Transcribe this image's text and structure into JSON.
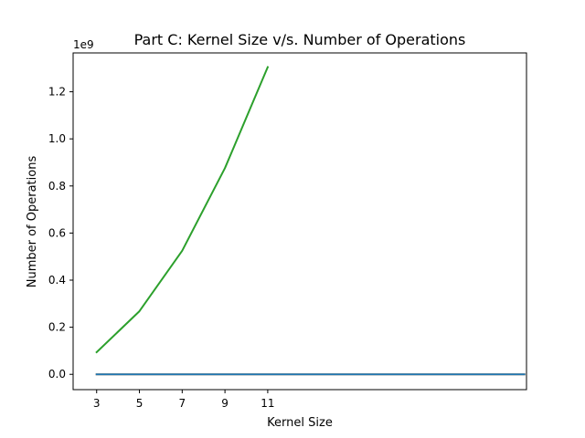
{
  "chart_data": {
    "type": "line",
    "title": "Part C: Kernel Size v/s. Number of Operations",
    "xlabel": "Kernel Size",
    "ylabel": "Number of Operations",
    "y_offset_label": "1e9",
    "xlim": [
      1.9,
      23.1
    ],
    "ylim": [
      -0.065,
      1.365
    ],
    "x_ticks": [
      3,
      5,
      7,
      9,
      11
    ],
    "y_ticks": [
      0.0,
      0.2,
      0.4,
      0.6,
      0.8,
      1.0,
      1.2
    ],
    "y_tick_labels": [
      "0.0",
      "0.2",
      "0.4",
      "0.6",
      "0.8",
      "1.0",
      "1.2"
    ],
    "grid": false,
    "legend": "none",
    "series": [
      {
        "color": "#2ca02c",
        "x": [
          3,
          5,
          7,
          9,
          11
        ],
        "y": [
          0.094,
          0.268,
          0.525,
          0.876,
          1.305
        ]
      },
      {
        "color": "#ff7f0e",
        "x": [
          3,
          23
        ],
        "y": [
          0.0,
          0.0
        ]
      },
      {
        "color": "#1f77b4",
        "x": [
          3,
          23
        ],
        "y": [
          0.0,
          0.0
        ]
      }
    ]
  }
}
